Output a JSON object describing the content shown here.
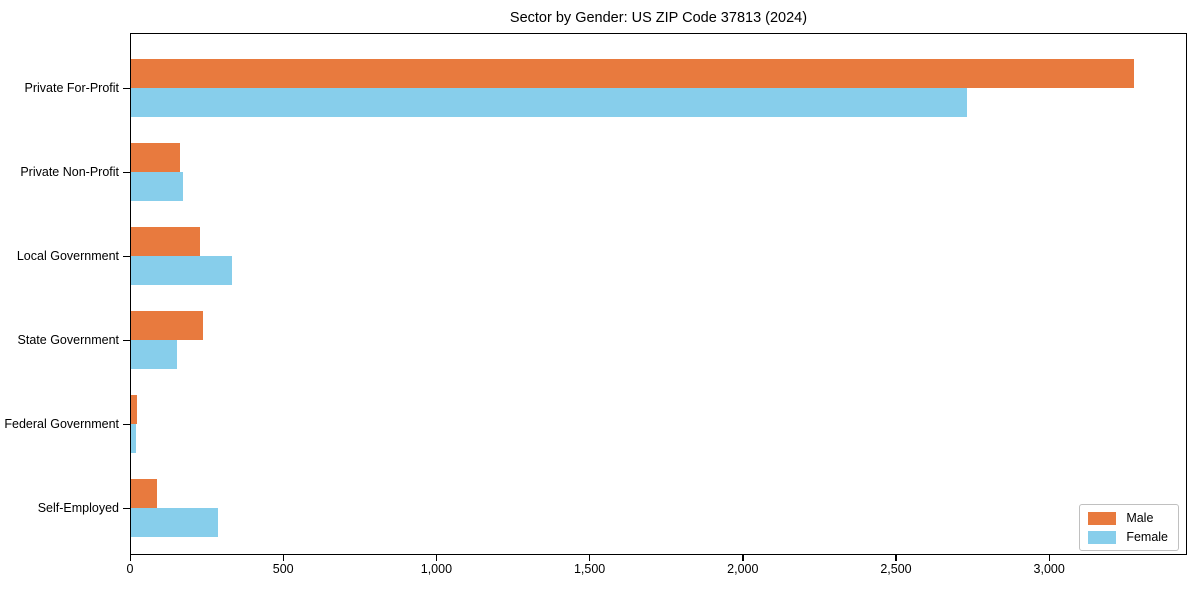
{
  "chart_data": {
    "type": "bar",
    "orientation": "horizontal",
    "title": "Sector by Gender: US ZIP Code 37813 (2024)",
    "categories": [
      "Private For-Profit",
      "Private Non-Profit",
      "Local Government",
      "State Government",
      "Federal Government",
      "Self-Employed"
    ],
    "series": [
      {
        "name": "Male",
        "color": "#e87a3e",
        "values": [
          3275,
          160,
          225,
          235,
          20,
          85
        ]
      },
      {
        "name": "Female",
        "color": "#87ceeb",
        "values": [
          2730,
          170,
          330,
          150,
          17,
          285
        ]
      }
    ],
    "xlabel": "",
    "ylabel": "",
    "xlim": [
      0,
      3440
    ],
    "xticks": [
      0,
      500,
      1000,
      1500,
      2000,
      2500,
      3000
    ],
    "xtick_labels": [
      "0",
      "500",
      "1,000",
      "1,500",
      "2,000",
      "2,500",
      "3,000"
    ],
    "grid": false,
    "legend": {
      "position": "lower right",
      "entries": [
        "Male",
        "Female"
      ]
    }
  }
}
